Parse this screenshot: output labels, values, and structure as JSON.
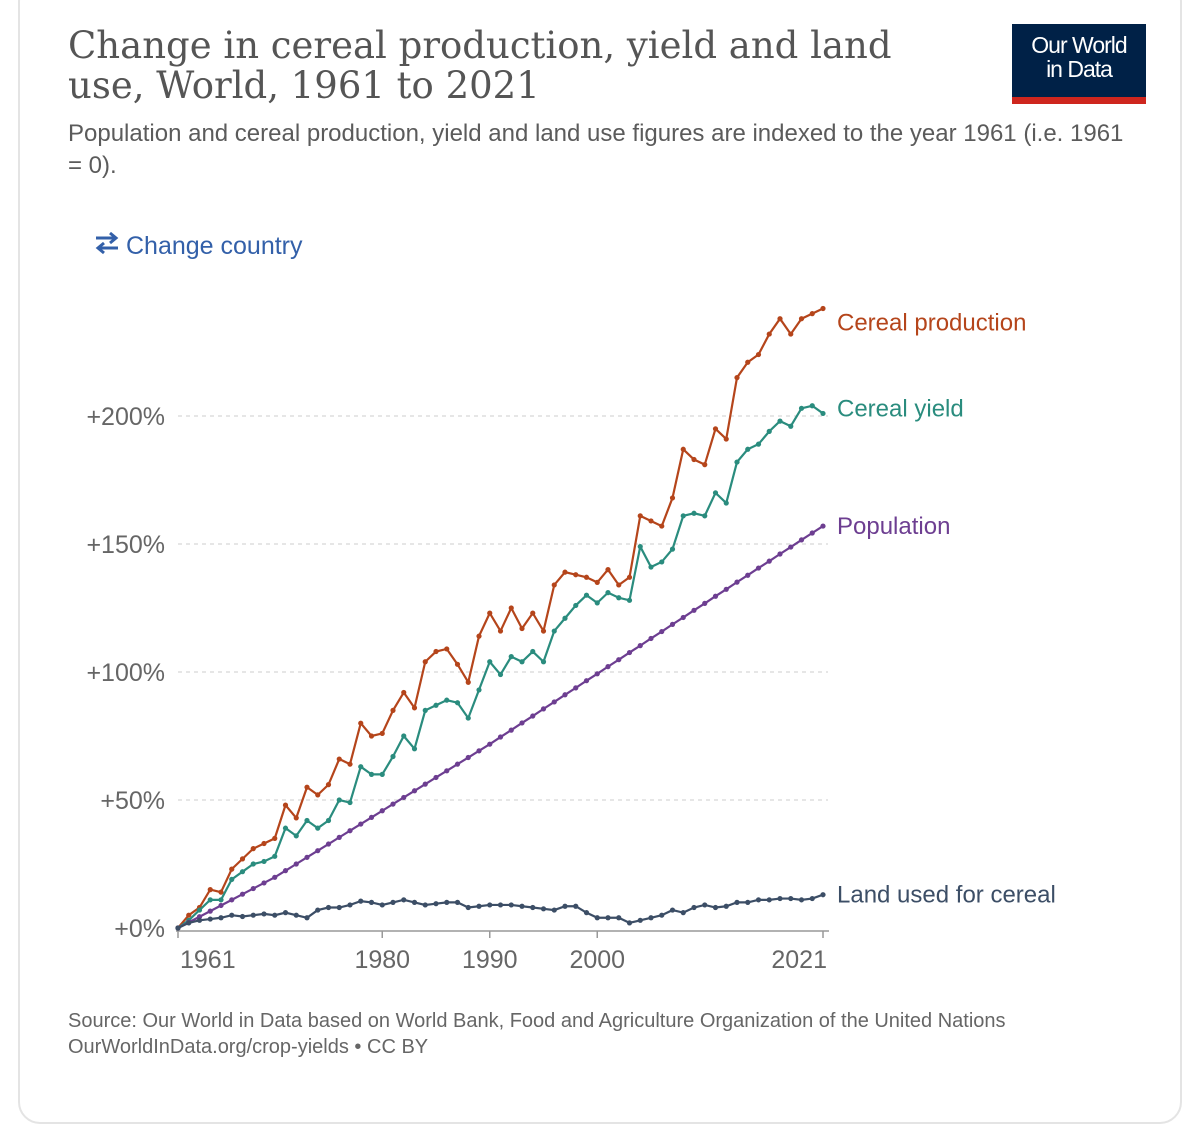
{
  "title": "Change in cereal production, yield and land use, World, 1961 to 2021",
  "subtitle": "Population and cereal production, yield and land use figures are indexed to the year 1961 (i.e. 1961 = 0).",
  "logo": {
    "line1": "Our World",
    "line2": "in Data",
    "bg_color": "#002147",
    "accent_color": "#ce261e"
  },
  "change_country": {
    "label": "Change country",
    "icon": "swap-arrows-icon",
    "color": "#3360a9"
  },
  "footer": {
    "source": "Source: Our World in Data based on World Bank, Food and Agriculture Organization of the United Nations",
    "url": "OurWorldInData.org/crop-yields",
    "separator": "•",
    "license": "CC BY"
  },
  "chart_data": {
    "type": "line",
    "title": "Change in cereal production, yield and land use, World, 1961 to 2021",
    "xlim": [
      1961,
      2021
    ],
    "ylim": [
      0,
      245
    ],
    "x_ticks": [
      1961,
      1980,
      1990,
      2000,
      2021
    ],
    "x_tick_labels": [
      "1961",
      "1980",
      "1990",
      "2000",
      "2021"
    ],
    "y_ticks": [
      0,
      50,
      100,
      150,
      200
    ],
    "y_tick_labels": [
      "+0%",
      "+50%",
      "+100%",
      "+150%",
      "+200%"
    ],
    "grid": "horizontal dashed",
    "legend": "inline labels at line ends (right)",
    "x": [
      1961,
      1962,
      1963,
      1964,
      1965,
      1966,
      1967,
      1968,
      1969,
      1970,
      1971,
      1972,
      1973,
      1974,
      1975,
      1976,
      1977,
      1978,
      1979,
      1980,
      1981,
      1982,
      1983,
      1984,
      1985,
      1986,
      1987,
      1988,
      1989,
      1990,
      1991,
      1992,
      1993,
      1994,
      1995,
      1996,
      1997,
      1998,
      1999,
      2000,
      2001,
      2002,
      2003,
      2004,
      2005,
      2006,
      2007,
      2008,
      2009,
      2010,
      2011,
      2012,
      2013,
      2014,
      2015,
      2016,
      2017,
      2018,
      2019,
      2020,
      2021
    ],
    "series": [
      {
        "name": "Cereal production",
        "color": "#b5451b",
        "values": [
          0,
          5,
          8,
          15,
          14,
          23,
          27,
          31,
          33,
          35,
          48,
          43,
          55,
          52,
          56,
          66,
          64,
          80,
          75,
          76,
          85,
          92,
          86,
          104,
          108,
          109,
          103,
          96,
          114,
          123,
          116,
          125,
          117,
          123,
          116,
          134,
          139,
          138,
          137,
          135,
          140,
          134,
          137,
          161,
          159,
          157,
          168,
          187,
          183,
          181,
          195,
          191,
          215,
          221,
          224,
          232,
          238,
          232,
          238,
          240,
          242
        ]
      },
      {
        "name": "Cereal yield",
        "color": "#2a8c7e",
        "values": [
          0,
          3,
          7,
          11,
          11,
          19,
          22,
          25,
          26,
          28,
          39,
          36,
          42,
          39,
          42,
          50,
          49,
          63,
          60,
          60,
          67,
          75,
          70,
          85,
          87,
          89,
          88,
          82,
          93,
          104,
          99,
          106,
          104,
          108,
          104,
          116,
          121,
          126,
          130,
          127,
          131,
          129,
          128,
          149,
          141,
          143,
          148,
          161,
          162,
          161,
          170,
          166,
          182,
          187,
          189,
          194,
          198,
          196,
          203,
          204,
          201
        ]
      },
      {
        "name": "Population",
        "color": "#6d3e91",
        "values": [
          0,
          2.2,
          4.4,
          6.6,
          8.8,
          11,
          13.2,
          15.4,
          17.6,
          19.8,
          22.4,
          25,
          27.6,
          30.2,
          32.8,
          35.4,
          38,
          40.6,
          43.2,
          45.8,
          48.4,
          51,
          53.6,
          56.2,
          58.8,
          61.4,
          64,
          66.6,
          69.2,
          71.8,
          74.6,
          77.3,
          80.1,
          82.8,
          85.6,
          88.3,
          91.1,
          93.8,
          96.6,
          99.3,
          102.1,
          104.8,
          107.6,
          110.3,
          113.1,
          115.8,
          118.6,
          121.3,
          124.1,
          126.8,
          129.6,
          132.3,
          135.1,
          137.8,
          140.6,
          143.3,
          146.1,
          148.8,
          151.6,
          154.3,
          157
        ]
      },
      {
        "name": "Land used for cereal",
        "color": "#3c4e66",
        "values": [
          0,
          2,
          3,
          3.5,
          4,
          5,
          4.5,
          5,
          5.5,
          5,
          6,
          5,
          4,
          7,
          8,
          8,
          9,
          10.5,
          10,
          9,
          10,
          11,
          10,
          9,
          9.5,
          10,
          10,
          8,
          8.5,
          9,
          9,
          9,
          8.5,
          8,
          7.5,
          7,
          8.5,
          8.5,
          6,
          4,
          4,
          4,
          2,
          3,
          4,
          5,
          7,
          6,
          8,
          9,
          8,
          8.5,
          10,
          10,
          11,
          11,
          11.5,
          11.5,
          11,
          11.5,
          13
        ]
      }
    ]
  }
}
